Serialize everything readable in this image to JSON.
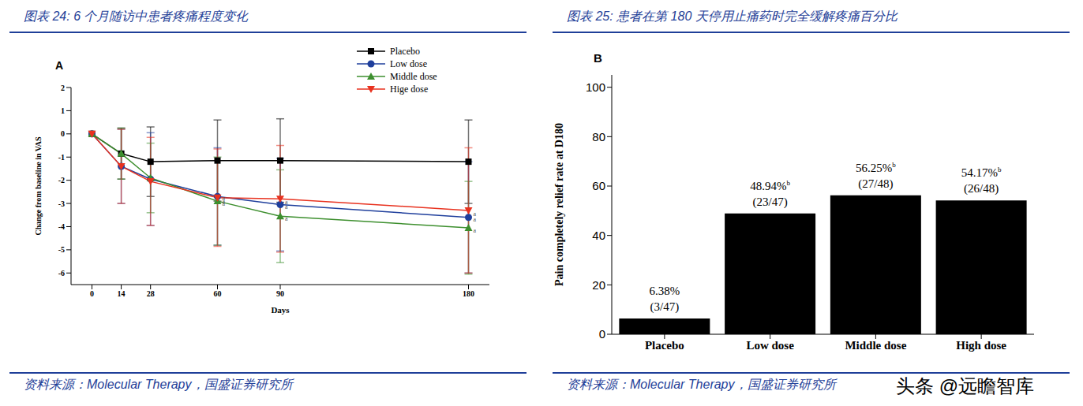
{
  "chart_data": [
    {
      "type": "line",
      "title": "图表 24: 6 个月随访中患者疼痛程度变化",
      "panel": "A",
      "source": "资料来源：Molecular Therapy，国盛证券研究所",
      "x_label": "Days",
      "y_label": "Change from baseline in VAS",
      "x": [
        0,
        14,
        28,
        60,
        90,
        180
      ],
      "xlim": [
        -10,
        190
      ],
      "xticks": [
        0,
        14,
        28,
        60,
        90,
        180
      ],
      "ylim": [
        -6.5,
        2
      ],
      "yticks": [
        -6,
        -5,
        -4,
        -3,
        -2,
        -1,
        0,
        1,
        2
      ],
      "legend": "upper right",
      "grid": false,
      "series": [
        {
          "name": "Placebo",
          "color": "#000000",
          "marker": "square",
          "values": [
            0,
            -0.85,
            -1.2,
            -1.15,
            -1.15,
            -1.2
          ],
          "error": [
            0,
            1.1,
            1.5,
            1.75,
            1.8,
            1.8
          ],
          "significance": [
            null,
            null,
            null,
            null,
            null,
            null
          ]
        },
        {
          "name": "Low dose",
          "color": "#1f3f9c",
          "marker": "circle",
          "values": [
            0,
            -1.4,
            -1.95,
            -2.7,
            -3.05,
            -3.6
          ],
          "error": [
            0,
            1.6,
            2.0,
            2.1,
            2.0,
            2.4
          ],
          "significance": [
            null,
            null,
            null,
            "a",
            "a",
            "a"
          ]
        },
        {
          "name": "Middle dose",
          "color": "#3d8f2e",
          "marker": "triangle",
          "values": [
            0,
            -0.85,
            -1.9,
            -2.9,
            -3.55,
            -4.05
          ],
          "error": [
            0,
            1.1,
            1.5,
            1.9,
            2.0,
            2.0
          ],
          "significance": [
            null,
            null,
            null,
            "a",
            "a",
            "a"
          ]
        },
        {
          "name": "Hige dose",
          "color": "#e8321f",
          "marker": "triangle-down",
          "values": [
            0,
            -1.4,
            -2.05,
            -2.75,
            -2.8,
            -3.3
          ],
          "error": [
            0,
            1.6,
            1.9,
            2.1,
            2.3,
            2.7
          ],
          "significance": [
            null,
            null,
            null,
            "a",
            "a",
            "a"
          ]
        }
      ]
    },
    {
      "type": "bar",
      "title": "图表 25: 患者在第 180 天停用止痛药时完全缓解疼痛百分比",
      "panel": "B",
      "source": "资料来源：Molecular Therapy，国盛证券研究所",
      "watermark": "头条 @远瞻智库",
      "y_label": "Pain completely relief rate at D180",
      "categories": [
        "Placebo",
        "Low dose",
        "Middle dose",
        "High dose"
      ],
      "values": [
        6.38,
        48.94,
        56.25,
        54.17
      ],
      "value_labels": [
        "6.38%",
        "48.94%",
        "56.25%",
        "54.17%"
      ],
      "significance": [
        null,
        "b",
        "b",
        "b"
      ],
      "fraction_labels": [
        "(3/47)",
        "(23/47)",
        "(27/48)",
        "(26/48)"
      ],
      "color": "#000000",
      "ylim": [
        0,
        105
      ],
      "yticks": [
        0,
        20,
        40,
        60,
        80,
        100
      ],
      "data_labels": true,
      "grid": false
    }
  ]
}
